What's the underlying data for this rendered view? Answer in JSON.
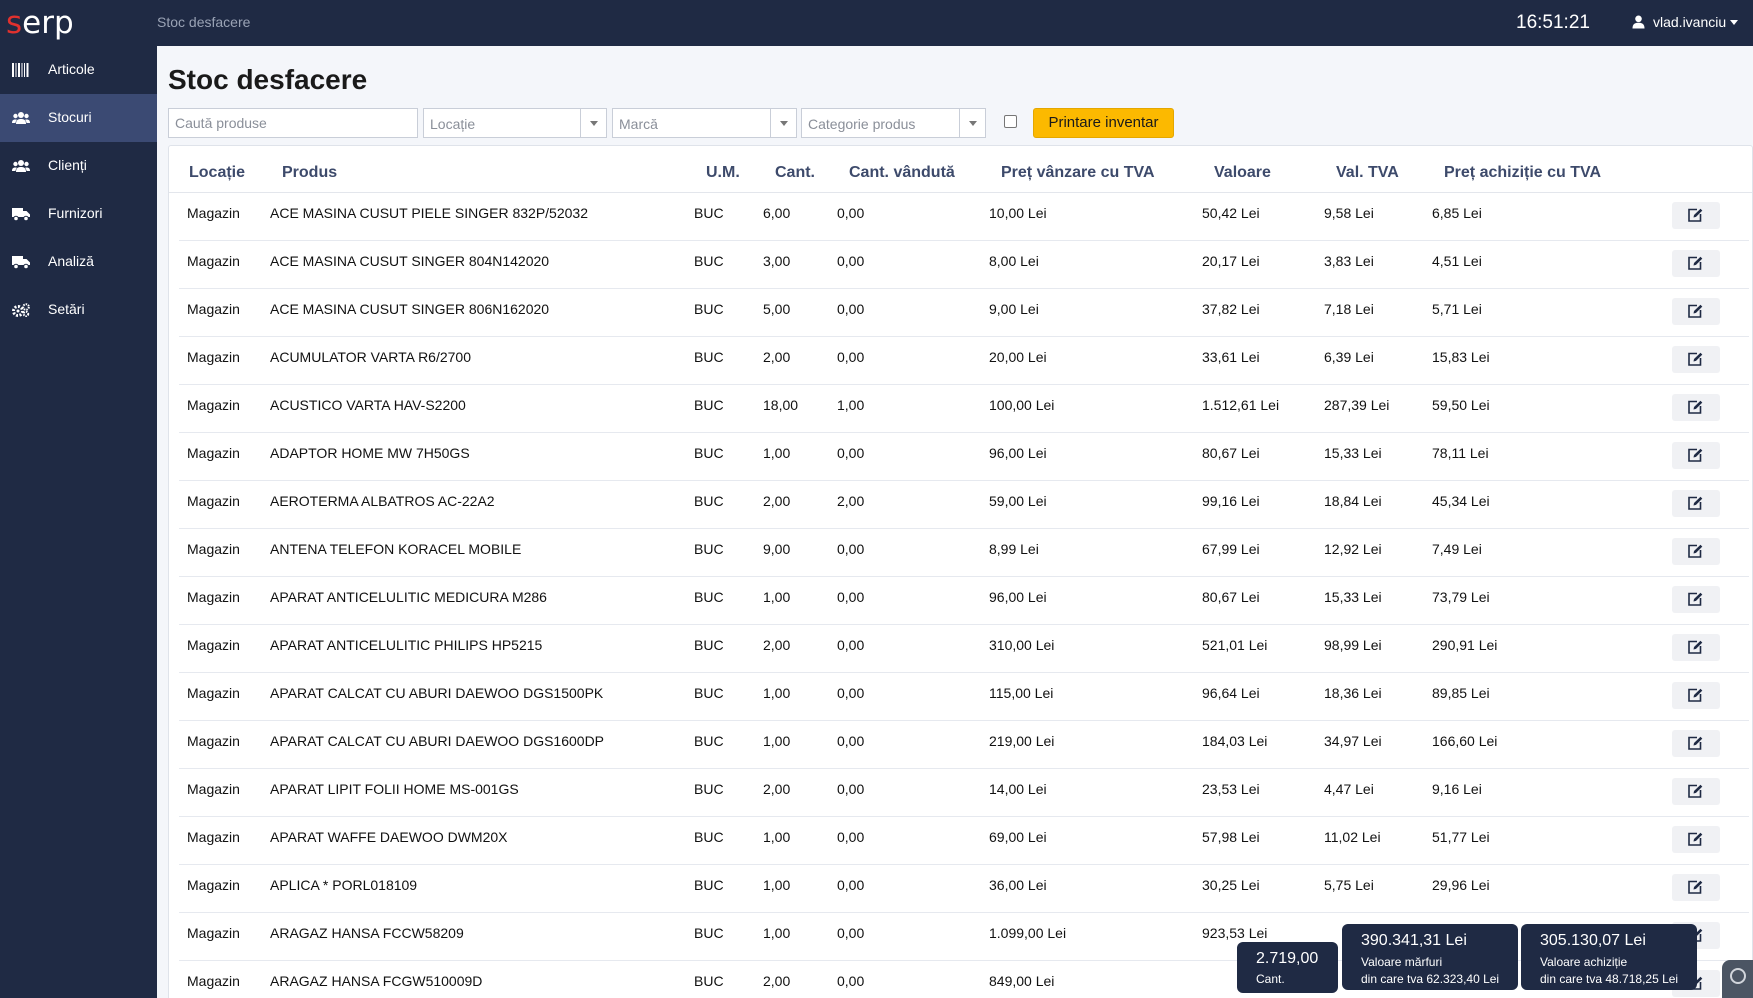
{
  "topbar": {
    "logo_s": "s",
    "logo_rest": "erp",
    "breadcrumb": "Stoc desfacere",
    "clock": "16:51:21",
    "username": "vlad.ivanciu"
  },
  "sidebar": {
    "items": [
      {
        "label": "Articole",
        "icon": "barcode-icon"
      },
      {
        "label": "Stocuri",
        "icon": "users-icon"
      },
      {
        "label": "Clienți",
        "icon": "users-icon"
      },
      {
        "label": "Furnizori",
        "icon": "truck-icon"
      },
      {
        "label": "Analiză",
        "icon": "truck-icon"
      },
      {
        "label": "Setări",
        "icon": "cogs-icon"
      }
    ],
    "active_index": 1
  },
  "page": {
    "title": "Stoc desfacere"
  },
  "filters": {
    "search_placeholder": "Caută produse",
    "location_placeholder": "Locație",
    "brand_placeholder": "Marcă",
    "category_placeholder": "Categorie produs",
    "print_label": "Printare inventar"
  },
  "table": {
    "headers": {
      "location": "Locație",
      "product": "Produs",
      "um": "U.M.",
      "qty": "Cant.",
      "qty_sold": "Cant. vândută",
      "sale_price": "Preț vânzare cu TVA",
      "value": "Valoare",
      "vat": "Val. TVA",
      "purchase_price": "Preț achiziție cu TVA"
    },
    "rows": [
      {
        "location": "Magazin",
        "product": "ACE MASINA CUSUT PIELE SINGER 832P/52032",
        "um": "BUC",
        "qty": "6,00",
        "qty_sold": "0,00",
        "sale_price": "10,00 Lei",
        "value": "50,42 Lei",
        "vat": "9,58 Lei",
        "purchase_price": "6,85 Lei"
      },
      {
        "location": "Magazin",
        "product": "ACE MASINA CUSUT SINGER 804N142020",
        "um": "BUC",
        "qty": "3,00",
        "qty_sold": "0,00",
        "sale_price": "8,00 Lei",
        "value": "20,17 Lei",
        "vat": "3,83 Lei",
        "purchase_price": "4,51 Lei"
      },
      {
        "location": "Magazin",
        "product": "ACE MASINA CUSUT SINGER 806N162020",
        "um": "BUC",
        "qty": "5,00",
        "qty_sold": "0,00",
        "sale_price": "9,00 Lei",
        "value": "37,82 Lei",
        "vat": "7,18 Lei",
        "purchase_price": "5,71 Lei"
      },
      {
        "location": "Magazin",
        "product": "ACUMULATOR VARTA R6/2700",
        "um": "BUC",
        "qty": "2,00",
        "qty_sold": "0,00",
        "sale_price": "20,00 Lei",
        "value": "33,61 Lei",
        "vat": "6,39 Lei",
        "purchase_price": "15,83 Lei"
      },
      {
        "location": "Magazin",
        "product": "ACUSTICO VARTA HAV-S2200",
        "um": "BUC",
        "qty": "18,00",
        "qty_sold": "1,00",
        "sale_price": "100,00 Lei",
        "value": "1.512,61 Lei",
        "vat": "287,39 Lei",
        "purchase_price": "59,50 Lei"
      },
      {
        "location": "Magazin",
        "product": "ADAPTOR HOME MW 7H50GS",
        "um": "BUC",
        "qty": "1,00",
        "qty_sold": "0,00",
        "sale_price": "96,00 Lei",
        "value": "80,67 Lei",
        "vat": "15,33 Lei",
        "purchase_price": "78,11 Lei"
      },
      {
        "location": "Magazin",
        "product": "AEROTERMA ALBATROS AC-22A2",
        "um": "BUC",
        "qty": "2,00",
        "qty_sold": "2,00",
        "sale_price": "59,00 Lei",
        "value": "99,16 Lei",
        "vat": "18,84 Lei",
        "purchase_price": "45,34 Lei"
      },
      {
        "location": "Magazin",
        "product": "ANTENA TELEFON KORACEL MOBILE",
        "um": "BUC",
        "qty": "9,00",
        "qty_sold": "0,00",
        "sale_price": "8,99 Lei",
        "value": "67,99 Lei",
        "vat": "12,92 Lei",
        "purchase_price": "7,49 Lei"
      },
      {
        "location": "Magazin",
        "product": "APARAT ANTICELULITIC MEDICURA M286",
        "um": "BUC",
        "qty": "1,00",
        "qty_sold": "0,00",
        "sale_price": "96,00 Lei",
        "value": "80,67 Lei",
        "vat": "15,33 Lei",
        "purchase_price": "73,79 Lei"
      },
      {
        "location": "Magazin",
        "product": "APARAT ANTICELULITIC PHILIPS HP5215",
        "um": "BUC",
        "qty": "2,00",
        "qty_sold": "0,00",
        "sale_price": "310,00 Lei",
        "value": "521,01 Lei",
        "vat": "98,99 Lei",
        "purchase_price": "290,91 Lei"
      },
      {
        "location": "Magazin",
        "product": "APARAT CALCAT CU ABURI DAEWOO DGS1500PK",
        "um": "BUC",
        "qty": "1,00",
        "qty_sold": "0,00",
        "sale_price": "115,00 Lei",
        "value": "96,64 Lei",
        "vat": "18,36 Lei",
        "purchase_price": "89,85 Lei"
      },
      {
        "location": "Magazin",
        "product": "APARAT CALCAT CU ABURI DAEWOO DGS1600DP",
        "um": "BUC",
        "qty": "1,00",
        "qty_sold": "0,00",
        "sale_price": "219,00 Lei",
        "value": "184,03 Lei",
        "vat": "34,97 Lei",
        "purchase_price": "166,60 Lei"
      },
      {
        "location": "Magazin",
        "product": "APARAT LIPIT FOLII HOME MS-001GS",
        "um": "BUC",
        "qty": "2,00",
        "qty_sold": "0,00",
        "sale_price": "14,00 Lei",
        "value": "23,53 Lei",
        "vat": "4,47 Lei",
        "purchase_price": "9,16 Lei"
      },
      {
        "location": "Magazin",
        "product": "APARAT WAFFE DAEWOO DWM20X",
        "um": "BUC",
        "qty": "1,00",
        "qty_sold": "0,00",
        "sale_price": "69,00 Lei",
        "value": "57,98 Lei",
        "vat": "11,02 Lei",
        "purchase_price": "51,77 Lei"
      },
      {
        "location": "Magazin",
        "product": "APLICA * PORL018109",
        "um": "BUC",
        "qty": "1,00",
        "qty_sold": "0,00",
        "sale_price": "36,00 Lei",
        "value": "30,25 Lei",
        "vat": "5,75 Lei",
        "purchase_price": "29,96 Lei"
      },
      {
        "location": "Magazin",
        "product": "ARAGAZ HANSA FCCW58209",
        "um": "BUC",
        "qty": "1,00",
        "qty_sold": "0,00",
        "sale_price": "1.099,00 Lei",
        "value": "923,53 Lei",
        "vat": "",
        "purchase_price": ""
      },
      {
        "location": "Magazin",
        "product": "ARAGAZ HANSA FCGW510009D",
        "um": "BUC",
        "qty": "2,00",
        "qty_sold": "0,00",
        "sale_price": "849,00 Lei",
        "value": "",
        "vat": "",
        "purchase_price": ""
      }
    ]
  },
  "summary": {
    "qty_total": "2.719,00",
    "qty_label": "Cant.",
    "goods_value": "390.341,31 Lei",
    "goods_label": "Valoare mărfuri",
    "goods_vat": "din care tva 62.323,40 Lei",
    "purchase_value": "305.130,07 Lei",
    "purchase_label": "Valoare achiziție",
    "purchase_vat": "din care tva 48.718,25 Lei"
  },
  "colors": {
    "navy": "#1f2a44",
    "sidebar_active": "#3b4a73",
    "accent_yellow": "#fcb900",
    "logo_red": "#e0312e",
    "header_text": "#3d4a6b"
  }
}
